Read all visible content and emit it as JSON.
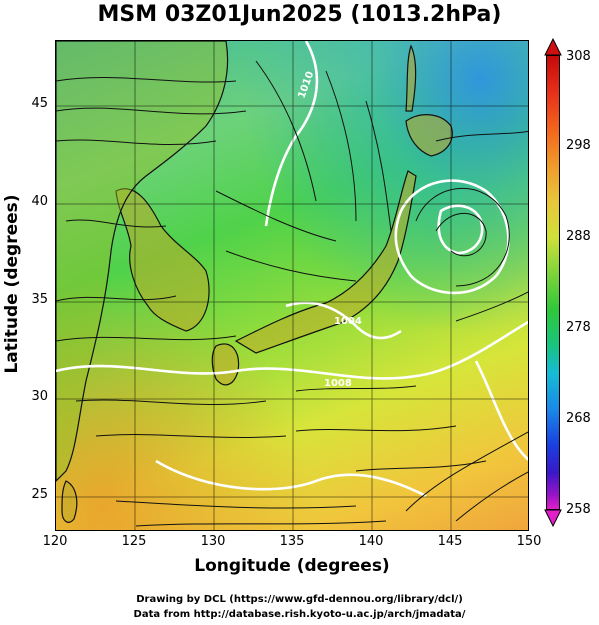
{
  "title": "MSM 03Z01Jun2025 (1013.2hPa)",
  "x_axis": {
    "label": "Longitude (degrees)",
    "ticks": [
      "120",
      "125",
      "130",
      "135",
      "140",
      "145",
      "150"
    ]
  },
  "y_axis": {
    "label": "Latitude  (degrees)",
    "ticks": [
      "45",
      "40",
      "35",
      "30",
      "25"
    ]
  },
  "colorbar": {
    "ticks": [
      "308",
      "298",
      "288",
      "278",
      "268",
      "258"
    ]
  },
  "contour_labels": [
    "1010",
    "1004",
    "1008"
  ],
  "footer": {
    "line1": "Drawing by DCL (https://www.gfd-dennou.org/library/dcl/)",
    "line2": "Data from http://database.rish.kyoto-u.ac.jp/arch/jmadata/"
  },
  "icons": {
    "colorbar_top": "triangle-up-icon",
    "colorbar_bottom": "triangle-down-icon"
  }
}
